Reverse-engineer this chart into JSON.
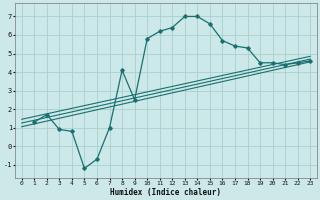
{
  "xlabel": "Humidex (Indice chaleur)",
  "bg_color": "#cce8e8",
  "grid_color": "#aacfcf",
  "line_color": "#1a7070",
  "xlim": [
    -0.5,
    23.5
  ],
  "ylim": [
    -1.7,
    7.7
  ],
  "xticks": [
    0,
    1,
    2,
    3,
    4,
    5,
    6,
    7,
    8,
    9,
    10,
    11,
    12,
    13,
    14,
    15,
    16,
    17,
    18,
    19,
    20,
    21,
    22,
    23
  ],
  "yticks": [
    -1,
    0,
    1,
    2,
    3,
    4,
    5,
    6,
    7
  ],
  "curve_x": [
    1,
    2,
    3,
    4,
    5,
    6,
    7,
    8,
    9,
    10,
    11,
    12,
    13,
    14,
    15,
    16,
    17,
    18,
    19,
    20,
    21,
    22,
    23
  ],
  "curve_y": [
    1.3,
    1.7,
    0.9,
    0.8,
    -1.2,
    -0.7,
    1.0,
    4.1,
    2.5,
    5.8,
    6.2,
    6.4,
    7.0,
    7.0,
    6.6,
    5.7,
    5.4,
    5.3,
    4.5,
    4.5,
    4.4,
    4.5,
    4.6
  ],
  "line1_x": [
    0,
    23
  ],
  "line1_y": [
    1.05,
    4.55
  ],
  "line2_x": [
    0,
    23
  ],
  "line2_y": [
    1.25,
    4.7
  ],
  "line3_x": [
    0,
    23
  ],
  "line3_y": [
    1.45,
    4.85
  ]
}
